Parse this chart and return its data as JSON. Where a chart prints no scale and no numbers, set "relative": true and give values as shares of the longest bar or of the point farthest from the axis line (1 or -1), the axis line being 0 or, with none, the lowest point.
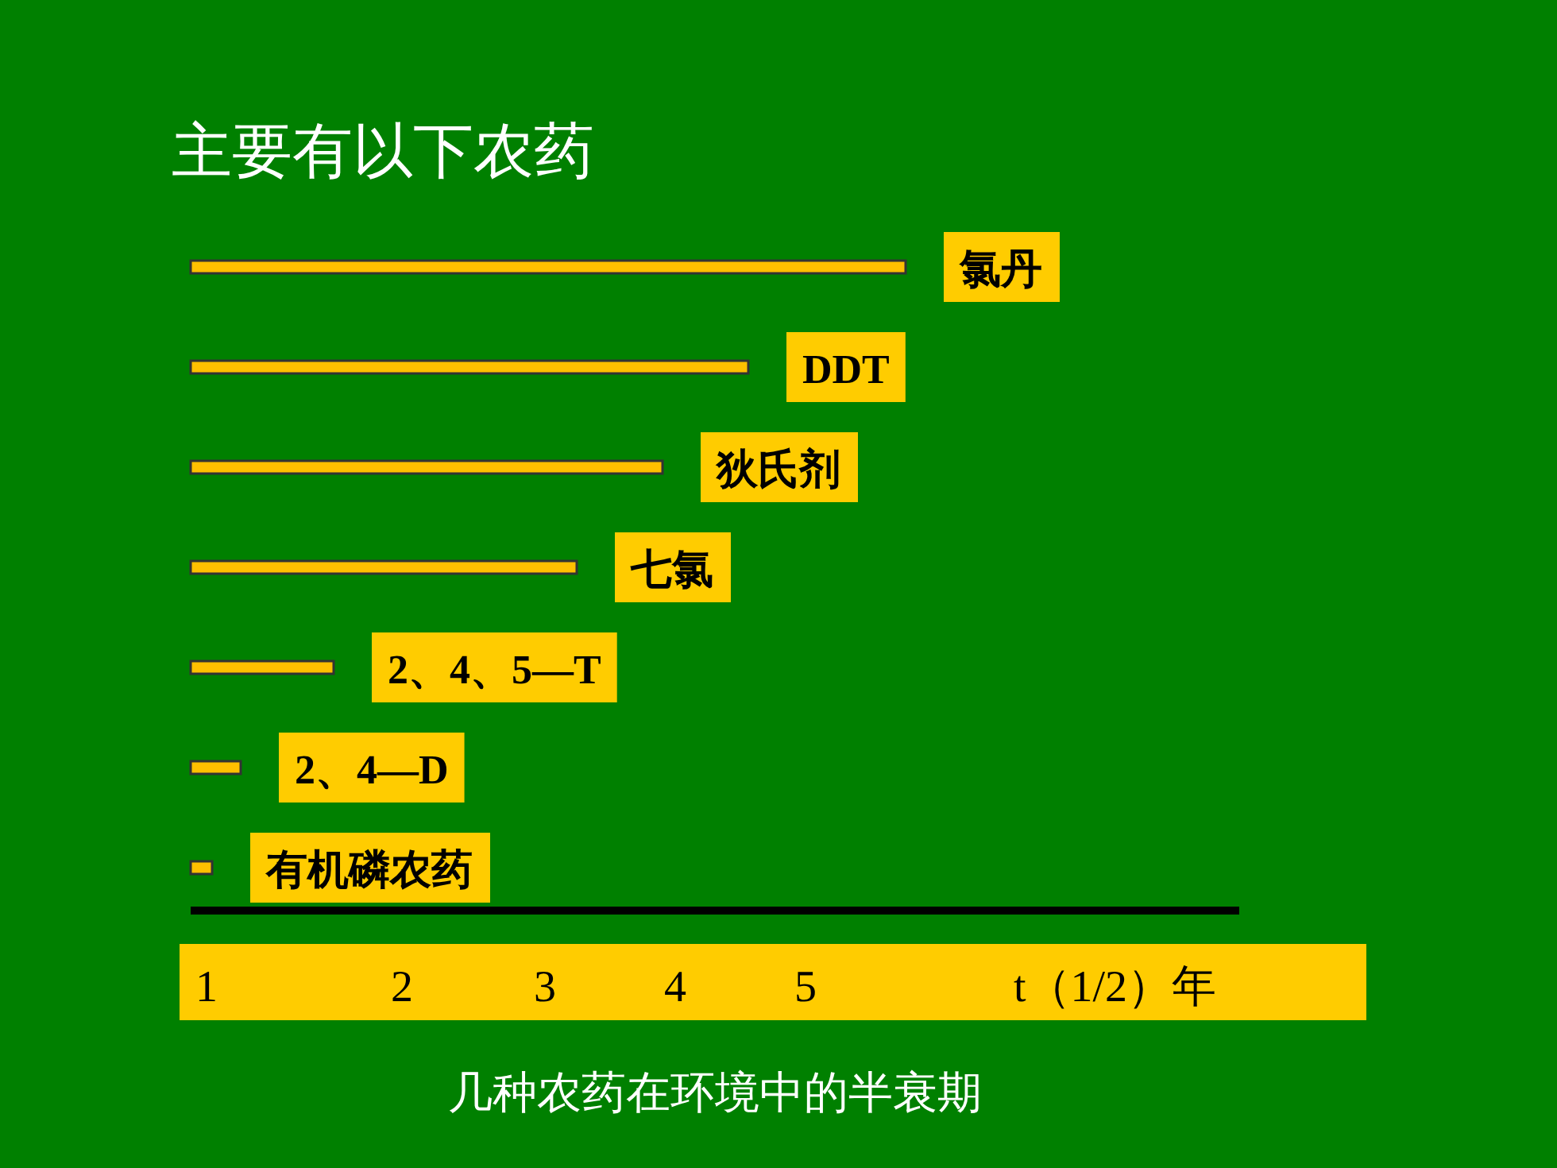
{
  "chart_data": {
    "type": "bar",
    "orientation": "horizontal",
    "relative": true,
    "title": "主要有以下农药",
    "categories": [
      "氯丹",
      "DDT",
      "狄氏剂",
      "七氯",
      "2、4、5—T",
      "2、4—D",
      "有机磷农药"
    ],
    "values": [
      1,
      0.78,
      0.66,
      0.54,
      0.2,
      0.07,
      0.03
    ],
    "color": "#ffc000",
    "xlabel": "t（1/2）年",
    "annotations": [
      "1",
      "2",
      "3",
      "4",
      "5",
      "几种农药在环境中的半衰期"
    ]
  }
}
